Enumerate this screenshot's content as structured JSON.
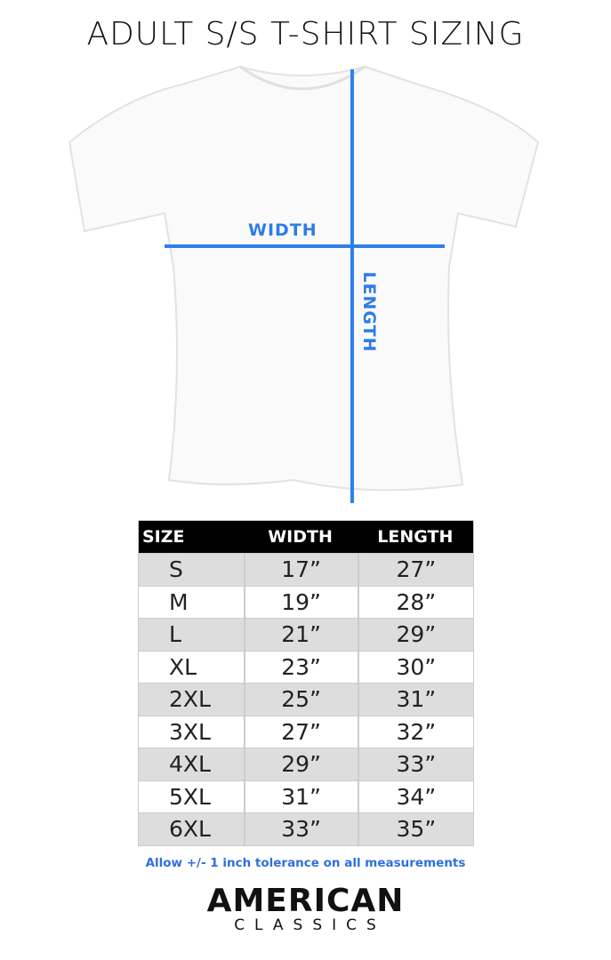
{
  "title": "ADULT S/S T-SHIRT SIZING",
  "diagram": {
    "width_label": "WIDTH",
    "length_label": "LENGTH",
    "line_color": "#2f7ff0"
  },
  "table": {
    "headers": [
      "SIZE",
      "WIDTH",
      "LENGTH"
    ],
    "rows": [
      [
        "S",
        "17”",
        "27”"
      ],
      [
        "M",
        "19”",
        "28”"
      ],
      [
        "L",
        "21”",
        "29”"
      ],
      [
        "XL",
        "23”",
        "30”"
      ],
      [
        "2XL",
        "25”",
        "31”"
      ],
      [
        "3XL",
        "27”",
        "32”"
      ],
      [
        "4XL",
        "29”",
        "33”"
      ],
      [
        "5XL",
        "31”",
        "34”"
      ],
      [
        "6XL",
        "33”",
        "35”"
      ]
    ]
  },
  "note": "Allow +/- 1 inch tolerance on all measurements",
  "brand": {
    "line1": "AMERICAN",
    "line2": "CLASSICS"
  }
}
